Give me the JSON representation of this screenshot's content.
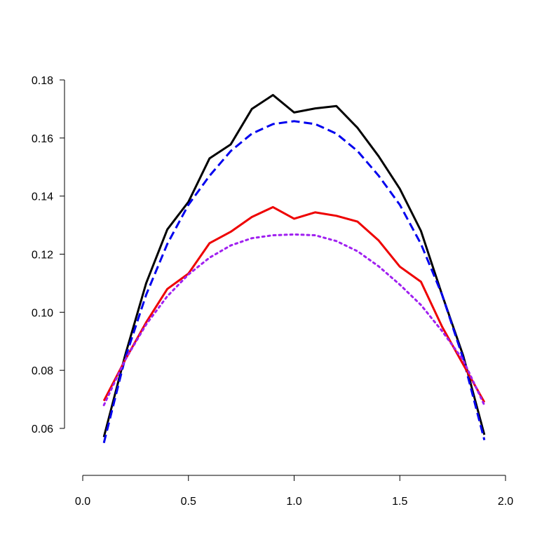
{
  "chart_data": {
    "type": "line",
    "title": "",
    "xlabel": "",
    "ylabel": "",
    "xlim": [
      0.0,
      2.0
    ],
    "ylim": [
      0.06,
      0.18
    ],
    "grid": false,
    "legend": "none",
    "x_ticks": [
      "0.0",
      "0.5",
      "1.0",
      "1.5",
      "2.0"
    ],
    "x_tick_values": [
      0.0,
      0.5,
      1.0,
      1.5,
      2.0
    ],
    "y_ticks": [
      "0.06",
      "0.08",
      "0.10",
      "0.12",
      "0.14",
      "0.16",
      "0.18"
    ],
    "y_tick_values": [
      0.06,
      0.08,
      0.1,
      0.12,
      0.14,
      0.16,
      0.18
    ],
    "x": [
      0.1,
      0.2,
      0.3,
      0.4,
      0.5,
      0.6,
      0.7,
      0.8,
      0.9,
      1.0,
      1.1,
      1.2,
      1.3,
      1.4,
      1.5,
      1.6,
      1.7,
      1.8,
      1.9
    ],
    "series": [
      {
        "color": "#000000",
        "style": "solid",
        "values": [
          0.057,
          0.085,
          0.11,
          0.1285,
          0.138,
          0.153,
          0.1578,
          0.17,
          0.1748,
          0.1688,
          0.1702,
          0.171,
          0.1635,
          0.1537,
          0.1425,
          0.128,
          0.106,
          0.085,
          0.0578
        ]
      },
      {
        "color": "#0000ee",
        "style": "dashed",
        "values": [
          0.055,
          0.084,
          0.106,
          0.1235,
          0.137,
          0.147,
          0.1555,
          0.1615,
          0.1648,
          0.1658,
          0.1648,
          0.1615,
          0.1555,
          0.147,
          0.137,
          0.1235,
          0.106,
          0.084,
          0.056
        ]
      },
      {
        "color": "#ee0000",
        "style": "solid",
        "values": [
          0.0695,
          0.0835,
          0.0965,
          0.108,
          0.1133,
          0.1238,
          0.1277,
          0.1328,
          0.1362,
          0.1322,
          0.1344,
          0.1332,
          0.1312,
          0.1247,
          0.1157,
          0.1105,
          0.095,
          0.082,
          0.069
        ]
      },
      {
        "color": "#a020f0",
        "style": "dotted",
        "values": [
          0.068,
          0.0835,
          0.0958,
          0.1055,
          0.113,
          0.1188,
          0.123,
          0.1255,
          0.1265,
          0.1268,
          0.1265,
          0.1245,
          0.121,
          0.1158,
          0.1095,
          0.1025,
          0.0935,
          0.0835,
          0.068
        ]
      }
    ]
  }
}
